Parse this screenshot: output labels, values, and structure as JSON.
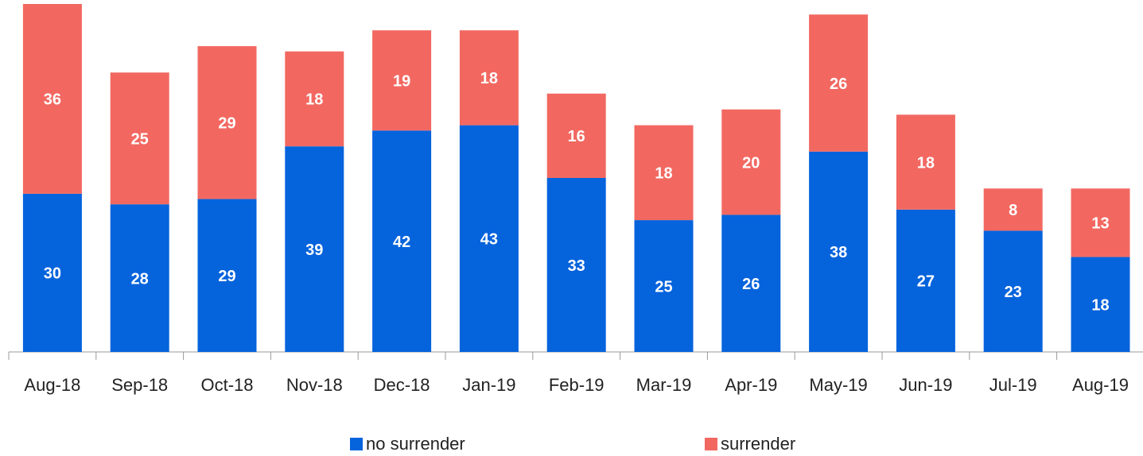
{
  "chart_data": {
    "type": "stacked_bar",
    "categories": [
      "Aug-18",
      "Sep-18",
      "Oct-18",
      "Nov-18",
      "Dec-18",
      "Jan-19",
      "Feb-19",
      "Mar-19",
      "Apr-19",
      "May-19",
      "Jun-19",
      "Jul-19",
      "Aug-19"
    ],
    "series": [
      {
        "name": "no surrender",
        "color": "#0563dc",
        "values": [
          30,
          28,
          29,
          39,
          42,
          43,
          33,
          25,
          26,
          38,
          27,
          23,
          18
        ]
      },
      {
        "name": "surrender",
        "color": "#f26861",
        "values": [
          36,
          25,
          29,
          18,
          19,
          18,
          16,
          18,
          20,
          26,
          18,
          8,
          13
        ]
      }
    ],
    "legend": "bottom"
  }
}
